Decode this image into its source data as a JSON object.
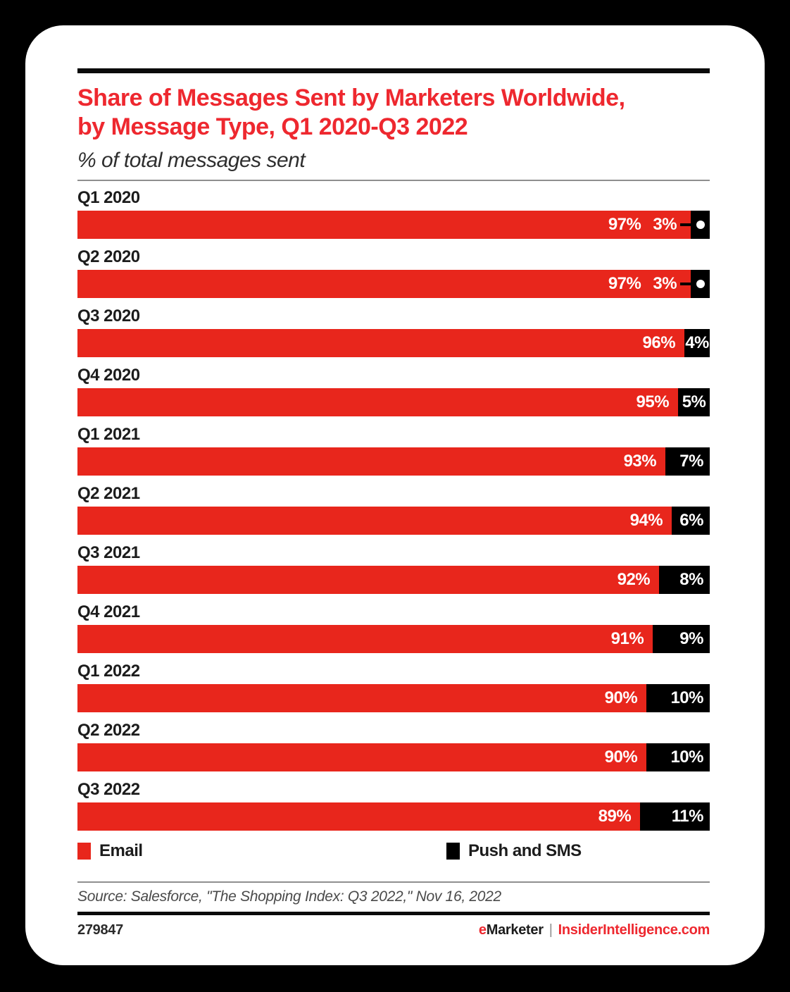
{
  "page": {
    "background_color": "#000000",
    "card_color": "#ffffff"
  },
  "header": {
    "title_line1": "Share of Messages Sent by Marketers Worldwide,",
    "title_line2": "by Message Type, Q1 2020-Q3 2022",
    "subtitle": "% of total messages sent",
    "title_color": "#ee282f"
  },
  "chart_data": {
    "type": "bar",
    "orientation": "horizontal",
    "stacked": true,
    "title": "Share of Messages Sent by Marketers Worldwide, by Message Type, Q1 2020-Q3 2022",
    "subtitle": "% of total messages sent",
    "unit": "%",
    "xlim": [
      0,
      100
    ],
    "grid": false,
    "legend_position": "bottom",
    "categories": [
      "Q1 2020",
      "Q2 2020",
      "Q3 2020",
      "Q4 2020",
      "Q1 2021",
      "Q2 2021",
      "Q3 2021",
      "Q4 2021",
      "Q1 2022",
      "Q2 2022",
      "Q3 2022"
    ],
    "series": [
      {
        "name": "Email",
        "color": "#e8261c",
        "values": [
          97,
          97,
          96,
          95,
          93,
          94,
          92,
          91,
          90,
          90,
          89
        ]
      },
      {
        "name": "Push and SMS",
        "color": "#000000",
        "values": [
          3,
          3,
          4,
          5,
          7,
          6,
          8,
          9,
          10,
          10,
          11
        ]
      }
    ],
    "value_label_suffix": "%",
    "callout_threshold": 3
  },
  "legend": {
    "items": [
      {
        "label": "Email",
        "color": "#e8261c"
      },
      {
        "label": "Push and SMS",
        "color": "#000000"
      }
    ]
  },
  "source_line": "Source: Salesforce, \"The Shopping Index: Q3 2022,\" Nov 16, 2022",
  "footer": {
    "chart_id": "279847",
    "brand_e": "e",
    "brand_rest": "Marketer",
    "separator": "|",
    "site": "InsiderIntelligence.com"
  }
}
